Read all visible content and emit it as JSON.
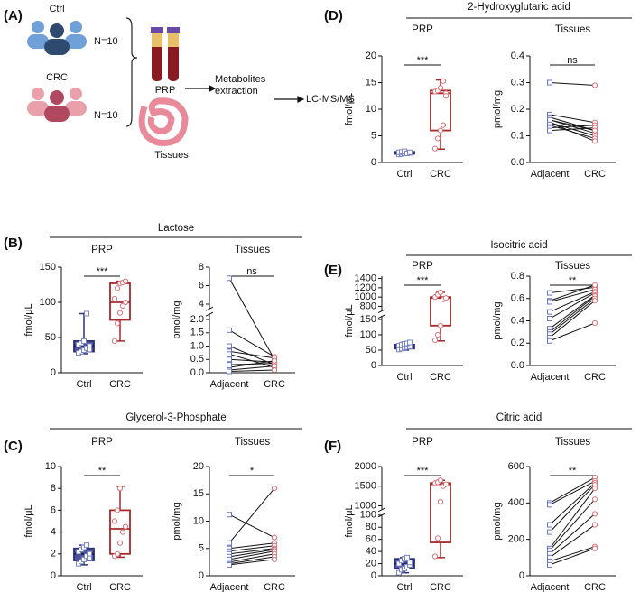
{
  "panel_a": {
    "label": "(A)",
    "groups": [
      {
        "name": "Ctrl",
        "n": "N=10"
      },
      {
        "name": "CRC",
        "n": "N=10"
      }
    ],
    "samples": [
      "PRP",
      "Tissues"
    ],
    "steps": [
      "Metabolites extraction",
      "LC-MS/MS"
    ]
  },
  "chart_data": [
    {
      "type": "box",
      "panel_label": "(B)",
      "panel_title": "Lactose",
      "title": "PRP",
      "ylabel": "fmol/μL",
      "sig": "***",
      "ylim": [
        0,
        150
      ],
      "yticks": [
        0,
        50,
        100,
        150
      ],
      "boxes": [
        {
          "name": "Ctrl",
          "color": "#2b2f7a",
          "point_color": "#7b86c4",
          "filled": true,
          "min": 27,
          "q1": 30,
          "median": 38,
          "q3": 45,
          "max": 84,
          "points": [
            28,
            30,
            32,
            35,
            38,
            40,
            42,
            45,
            84,
            33
          ]
        },
        {
          "name": "CRC",
          "color": "#a4282a",
          "point_color": "#d9737a",
          "filled": false,
          "min": 45,
          "q1": 75,
          "median": 100,
          "q3": 127,
          "max": 130,
          "points": [
            45,
            70,
            85,
            95,
            100,
            105,
            120,
            127,
            128,
            130
          ]
        }
      ]
    },
    {
      "type": "paired",
      "title": "Tissues",
      "ylabel": "pmol/mg",
      "sig": "ns",
      "ylim_segments": [
        [
          0,
          2.2
        ],
        [
          3.5,
          8
        ]
      ],
      "yticks": [
        {
          "value": 0,
          "label": "0.0"
        },
        0.5,
        {
          "value": 1,
          "label": "1.0"
        },
        1.5,
        {
          "value": 2,
          "label": "2.0"
        },
        4,
        6,
        8
      ],
      "series": [
        {
          "name": "Adjacent",
          "color": "#6b76b8",
          "values": [
            6.8,
            1.6,
            1.0,
            0.8,
            0.7,
            0.5,
            0.3,
            0.2,
            0.1,
            0.05
          ]
        },
        {
          "name": "CRC",
          "color": "#d9737a",
          "values": [
            0.5,
            0.6,
            0.3,
            0.55,
            0.2,
            0.4,
            0.35,
            0.45,
            0.25,
            0.1
          ]
        }
      ]
    },
    {
      "type": "box",
      "panel_label": "(C)",
      "panel_title": "Glycerol-3-Phosphate",
      "title": "PRP",
      "ylabel": "fmol/μL",
      "sig": "**",
      "ylim": [
        0,
        10
      ],
      "yticks": [
        0,
        2,
        4,
        6,
        8,
        10
      ],
      "boxes": [
        {
          "name": "Ctrl",
          "color": "#2b2f7a",
          "point_color": "#7b86c4",
          "filled": true,
          "min": 1.0,
          "q1": 1.4,
          "median": 2.0,
          "q3": 2.5,
          "max": 2.8,
          "points": [
            1.1,
            1.3,
            1.5,
            1.8,
            2.0,
            2.2,
            2.4,
            2.6,
            2.8,
            1.6
          ]
        },
        {
          "name": "CRC",
          "color": "#a4282a",
          "point_color": "#d9737a",
          "filled": false,
          "min": 1.7,
          "q1": 2.0,
          "median": 4.3,
          "q3": 6.0,
          "max": 8.2,
          "points": [
            1.8,
            2.0,
            3.0,
            4.0,
            4.5,
            5.0,
            6.0,
            8.0
          ]
        }
      ]
    },
    {
      "type": "paired",
      "title": "Tissues",
      "ylabel": "pmol/mg",
      "sig": "*",
      "ylim": [
        0,
        20
      ],
      "yticks": [
        0,
        5,
        10,
        15,
        20
      ],
      "series": [
        {
          "name": "Adjacent",
          "color": "#6b76b8",
          "values": [
            11.2,
            6,
            5,
            4.5,
            4,
            3.5,
            3,
            2.5,
            2.2,
            2
          ]
        },
        {
          "name": "CRC",
          "color": "#d9737a",
          "values": [
            7,
            16,
            6,
            5.5,
            5,
            4.8,
            4.5,
            4,
            3.5,
            3
          ]
        }
      ]
    },
    {
      "type": "box",
      "panel_label": "(D)",
      "panel_title": "2-Hydroxyglutaric acid",
      "title": "PRP",
      "ylabel": "fmol/μL",
      "sig": "***",
      "ylim": [
        0,
        20
      ],
      "yticks": [
        0,
        5,
        10,
        15,
        20
      ],
      "boxes": [
        {
          "name": "Ctrl",
          "color": "#2b2f7a",
          "point_color": "#7b86c4",
          "filled": true,
          "min": 1.4,
          "q1": 1.6,
          "median": 1.8,
          "q3": 2.0,
          "max": 2.2,
          "points": [
            1.5,
            1.6,
            1.7,
            1.8,
            1.8,
            1.9,
            2.0,
            2.1,
            1.7,
            1.9
          ]
        },
        {
          "name": "CRC",
          "color": "#a4282a",
          "point_color": "#d9737a",
          "filled": false,
          "min": 2.5,
          "q1": 6,
          "median": 13,
          "q3": 13.5,
          "max": 15.5,
          "points": [
            2.6,
            4.5,
            6,
            7,
            13,
            13.3,
            13.5,
            14,
            15.3,
            12.5
          ]
        }
      ]
    },
    {
      "type": "paired",
      "title": "Tissues",
      "ylabel": "pmol/mg",
      "sig": "ns",
      "ylim": [
        0,
        0.4
      ],
      "yticks": [
        {
          "value": 0,
          "label": "0.0"
        },
        0.1,
        0.2,
        0.3,
        0.4
      ],
      "series": [
        {
          "name": "Adjacent",
          "color": "#6b76b8",
          "values": [
            0.3,
            0.18,
            0.17,
            0.16,
            0.15,
            0.14,
            0.13,
            0.15,
            0.12,
            0.16
          ]
        },
        {
          "name": "CRC",
          "color": "#d9737a",
          "values": [
            0.29,
            0.15,
            0.12,
            0.11,
            0.1,
            0.09,
            0.14,
            0.08,
            0.13,
            0.12
          ]
        }
      ]
    },
    {
      "type": "box",
      "panel_label": "(E)",
      "panel_title": "Isocitric acid",
      "title": "PRP",
      "ylabel": "fmol/μL",
      "sig": "***",
      "ylim_segments": [
        [
          0,
          160
        ],
        [
          700,
          1450
        ]
      ],
      "yticks": [
        0,
        50,
        100,
        150,
        800,
        1000,
        1200,
        1400
      ],
      "boxes": [
        {
          "name": "Ctrl",
          "color": "#2b2f7a",
          "point_color": "#7b86c4",
          "filled": true,
          "min": 50,
          "q1": 55,
          "median": 60,
          "q3": 68,
          "max": 75,
          "points": [
            52,
            55,
            58,
            60,
            62,
            65,
            68,
            70,
            72,
            75
          ]
        },
        {
          "name": "CRC",
          "color": "#a4282a",
          "point_color": "#d9737a",
          "filled": false,
          "min": 80,
          "q1": 130,
          "median": 980,
          "q3": 1000,
          "max": 1100,
          "points": [
            82,
            100,
            130,
            950,
            980,
            1000,
            1050,
            1100
          ]
        }
      ]
    },
    {
      "type": "paired",
      "title": "Tissues",
      "ylabel": "pmol/mg",
      "sig": "**",
      "ylim": [
        0,
        0.8
      ],
      "yticks": [
        {
          "value": 0,
          "label": "0.0"
        },
        0.2,
        0.4,
        0.6,
        0.8
      ],
      "series": [
        {
          "name": "Adjacent",
          "color": "#6b76b8",
          "values": [
            0.65,
            0.58,
            0.57,
            0.48,
            0.42,
            0.33,
            0.3,
            0.28,
            0.25,
            0.22
          ]
        },
        {
          "name": "CRC",
          "color": "#d9737a",
          "values": [
            0.7,
            0.72,
            0.68,
            0.66,
            0.65,
            0.63,
            0.62,
            0.6,
            0.58,
            0.38
          ]
        }
      ]
    },
    {
      "type": "box",
      "panel_label": "(F)",
      "panel_title": "Citric acid",
      "title": "PRP",
      "ylabel": "fmol/μL",
      "sig": "***",
      "ylim_segments": [
        [
          0,
          100
        ],
        [
          900,
          2000
        ]
      ],
      "yticks": [
        0,
        20,
        40,
        60,
        80,
        100,
        1000,
        1500,
        2000
      ],
      "boxes": [
        {
          "name": "Ctrl",
          "color": "#2b2f7a",
          "point_color": "#7b86c4",
          "filled": true,
          "min": 5,
          "q1": 12,
          "median": 20,
          "q3": 28,
          "max": 30,
          "points": [
            5,
            10,
            12,
            15,
            18,
            20,
            25,
            28,
            30,
            22
          ]
        },
        {
          "name": "CRC",
          "color": "#a4282a",
          "point_color": "#d9737a",
          "filled": false,
          "min": 30,
          "q1": 55,
          "median": 1550,
          "q3": 1580,
          "max": 1650,
          "points": [
            32,
            62,
            1100,
            1500,
            1550,
            1580,
            1600,
            1650
          ]
        }
      ]
    },
    {
      "type": "paired",
      "title": "Tissues",
      "ylabel": "pmol/mg",
      "sig": "**",
      "ylim": [
        0,
        600
      ],
      "yticks": [
        0,
        200,
        400,
        600
      ],
      "series": [
        {
          "name": "Adjacent",
          "color": "#6b76b8",
          "values": [
            400,
            390,
            280,
            240,
            150,
            140,
            120,
            100,
            80,
            60
          ]
        },
        {
          "name": "CRC",
          "color": "#d9737a",
          "values": [
            540,
            520,
            510,
            500,
            480,
            420,
            340,
            280,
            160,
            150
          ]
        }
      ]
    }
  ]
}
